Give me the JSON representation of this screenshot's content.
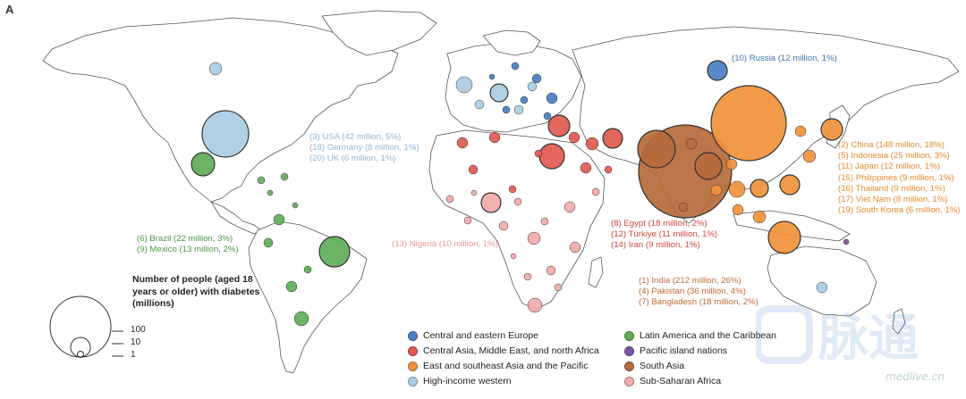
{
  "panel_label": "A",
  "annotations": {
    "russia": "(10) Russia (12 million, 1%)",
    "western": [
      "(3) USA (42 million, 5%)",
      "(18) Germany (8 million, 1%)",
      "(20) UK (6 million, 1%)"
    ],
    "latam": [
      "(6) Brazil (22 million, 3%)",
      "(9) Mexico (13 million, 2%)"
    ],
    "nigeria": "(13) Nigeria (10 million, 1%)",
    "mena": [
      "(8) Egypt (18 million, 2%)",
      "(12) Türkiye  (11 million, 1%)",
      "(14) Iran (9 million, 1%)"
    ],
    "south_asia": [
      "(1) India (212 million, 26%)",
      "(4) Pakistan (36 million, 4%)",
      "(7) Bangladesh (18 million, 2%)"
    ],
    "east_asia": [
      "(2) China (148 million, 18%)",
      "(5) Indonesia (25 million, 3%)",
      "(11) Japan (12 million, 1%)",
      "(15) Philippines (9 million, 1%)",
      "(16) Thailand (9 million, 1%)",
      "(17) Viet Nam (8 million, 1%)",
      "(19) South Korea (6 million, 1%)"
    ]
  },
  "size_legend": {
    "title": "Number of people (aged 18 years or older) with diabetes (millions)",
    "values": [
      "100",
      "10",
      "1"
    ]
  },
  "region_legend": [
    {
      "label": "Central and eastern Europe",
      "color": "#4a7fc1"
    },
    {
      "label": "Central Asia, Middle East, and north Africa",
      "color": "#e05a4f"
    },
    {
      "label": "East and southeast Asia and the Pacific",
      "color": "#f0913b"
    },
    {
      "label": "High-income western",
      "color": "#a9cde3"
    },
    {
      "label": "Latin America and the Caribbean",
      "color": "#5fac59"
    },
    {
      "label": "Pacific island nations",
      "color": "#7b55a0"
    },
    {
      "label": "South Asia",
      "color": "#b56a3b"
    },
    {
      "label": "Sub-Saharan Africa",
      "color": "#f2aaa8"
    }
  ],
  "colors": {
    "cee": "#4a7fc1",
    "mena": "#e05a4f",
    "east": "#f0913b",
    "west": "#a9cde3",
    "latam": "#5fac59",
    "pacific": "#7b55a0",
    "south": "#b56a3b",
    "ssa": "#f2aaa8",
    "anno_cee": "#3d74b0",
    "anno_west": "#8fb7d4",
    "anno_latam": "#4a9a44",
    "anno_mena": "#d0463c",
    "anno_east": "#e88a2e",
    "anno_south": "#c06a32",
    "anno_ssa": "#eb9794"
  },
  "watermark": "medlive.cn"
}
